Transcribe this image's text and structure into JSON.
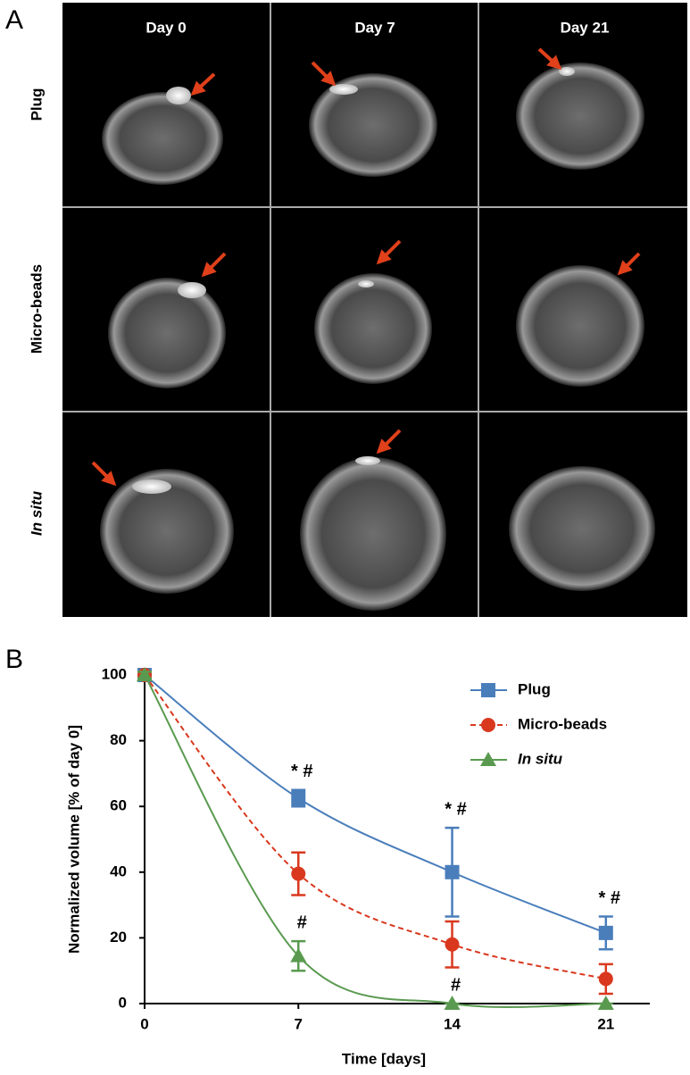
{
  "panel_a": {
    "label": "A",
    "columns": [
      "Day 0",
      "Day 7",
      "Day 21"
    ],
    "rows": [
      "Plug",
      "Micro-beads",
      "In situ"
    ]
  },
  "panel_b": {
    "label": "B"
  },
  "chart_data": {
    "type": "line",
    "x_label": "Time [days]",
    "y_label": "Normalized volume [% of day 0]",
    "x": [
      0,
      7,
      14,
      21
    ],
    "xlim": [
      0,
      23
    ],
    "xticks": [
      0,
      7,
      14,
      21
    ],
    "ylim": [
      0,
      100
    ],
    "yticks": [
      0,
      20,
      40,
      60,
      80,
      100
    ],
    "legend": "upper right",
    "series": [
      {
        "name": "Plug",
        "color": "#4a7ebb",
        "marker": "square",
        "dashed": false,
        "values": [
          100,
          62.5,
          40,
          21.5
        ],
        "errors": [
          1,
          2.5,
          13.5,
          5
        ],
        "annotations": [
          null,
          "* #",
          "* #",
          "* #"
        ]
      },
      {
        "name": "Micro-beads",
        "color": "#d9381e",
        "marker": "circle",
        "dashed": true,
        "values": [
          100,
          39.5,
          18,
          7.5
        ],
        "errors": [
          1,
          6.5,
          7,
          4.5
        ],
        "annotations": [
          null,
          null,
          null,
          null
        ]
      },
      {
        "name": "In situ",
        "color": "#5a9a50",
        "marker": "triangle",
        "dashed": false,
        "italic": true,
        "values": [
          100,
          14.5,
          0,
          0
        ],
        "errors": [
          1,
          4.5,
          0,
          0
        ],
        "annotations": [
          null,
          "#",
          "#",
          null
        ]
      }
    ]
  }
}
